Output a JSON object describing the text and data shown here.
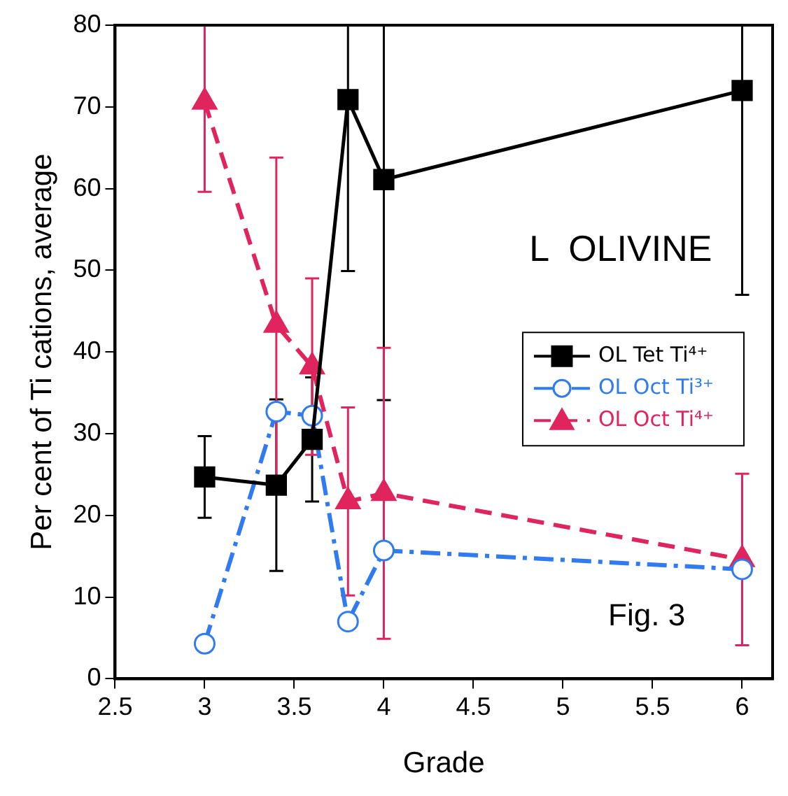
{
  "chart_data": {
    "type": "line",
    "xlabel": "Grade",
    "ylabel": "Per cent of Ti cations, average",
    "annotations": [
      {
        "text": "L  OLIVINE"
      },
      {
        "text": "Fig. 3"
      }
    ],
    "x": [
      3,
      3.4,
      3.6,
      3.8,
      4,
      6
    ],
    "xlim": [
      2.5,
      6.17
    ],
    "xticks": [
      2.5,
      3,
      3.5,
      4,
      4.5,
      5,
      5.5,
      6
    ],
    "ylim": [
      0,
      80
    ],
    "yticks": [
      0,
      10,
      20,
      30,
      40,
      50,
      60,
      70,
      80
    ],
    "grid": false,
    "legend": "right",
    "series": [
      {
        "name": "OL Tet Ti⁴⁺",
        "color": "#000000",
        "marker": "square",
        "line_style": "solid",
        "values": [
          24.7,
          23.7,
          29.3,
          70.9,
          61.1,
          72
        ],
        "errors": [
          5,
          10.5,
          7.6,
          [
            49.9,
            80
          ],
          [
            34.1,
            80
          ],
          [
            47,
            80
          ]
        ]
      },
      {
        "name": "OL Oct Ti³⁺",
        "color": "#2f7bef",
        "marker": "circle",
        "line_style": "dashdot",
        "values": [
          4.3,
          32.7,
          32.2,
          7,
          15.7,
          13.4
        ]
      },
      {
        "name": "OL Oct Ti⁴⁺",
        "color": "#e0245e",
        "marker": "triangle",
        "line_style": "dashed",
        "values": [
          70.6,
          43.3,
          38.2,
          21.7,
          22.7,
          14.6
        ],
        "errors": [
          [
            59.6,
            80
          ],
          20.5,
          10.8,
          11.5,
          17.8,
          10.5
        ]
      }
    ]
  }
}
